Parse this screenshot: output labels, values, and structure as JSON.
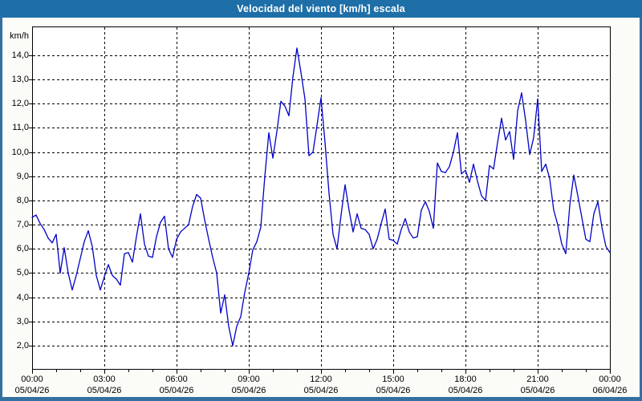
{
  "window": {
    "title": "Velocidad del viento [km/h] escala"
  },
  "colors": {
    "title_bar_bg": "#1E6FA8",
    "frame": "#34709F",
    "content_bg": "#FBFBF8",
    "plot_bg": "#FFFFFF",
    "grid": "#000000",
    "line": "#0000C8",
    "text": "#000000",
    "title_text": "#FFFFFF"
  },
  "chart_data": {
    "type": "line",
    "title": "Velocidad del viento [km/h] escala",
    "xlabel": "",
    "ylabel": "km/h",
    "grid": "dashed",
    "legend": "none",
    "xlim_hours": [
      0,
      24
    ],
    "ylim": [
      1.05,
      15.2
    ],
    "x_minor_tick_every_hours": 1,
    "x_major_tick_every_hours": 3,
    "y_ticks": [
      {
        "value": 14,
        "label": "14,0"
      },
      {
        "value": 13,
        "label": "13,0"
      },
      {
        "value": 12,
        "label": "12,0"
      },
      {
        "value": 11,
        "label": "11,0"
      },
      {
        "value": 10,
        "label": "10,0"
      },
      {
        "value": 9,
        "label": "9,0"
      },
      {
        "value": 8,
        "label": "8,0"
      },
      {
        "value": 7,
        "label": "7,0"
      },
      {
        "value": 6,
        "label": "6,0"
      },
      {
        "value": 5,
        "label": "5,0"
      },
      {
        "value": 4,
        "label": "4,0"
      },
      {
        "value": 3,
        "label": "3,0"
      },
      {
        "value": 2,
        "label": "2,0"
      }
    ],
    "x_ticks_major": [
      {
        "hour": 0,
        "label": "00:00",
        "date": "05/04/26"
      },
      {
        "hour": 3,
        "label": "03:00",
        "date": "05/04/26"
      },
      {
        "hour": 6,
        "label": "06:00",
        "date": "05/04/26"
      },
      {
        "hour": 9,
        "label": "09:00",
        "date": "05/04/26"
      },
      {
        "hour": 12,
        "label": "12:00",
        "date": "05/04/26"
      },
      {
        "hour": 15,
        "label": "15:00",
        "date": "05/04/26"
      },
      {
        "hour": 18,
        "label": "18:00",
        "date": "05/04/26"
      },
      {
        "hour": 21,
        "label": "21:00",
        "date": "05/04/26"
      },
      {
        "hour": 24,
        "label": "00:00",
        "date": "06/04/26"
      }
    ],
    "series": [
      {
        "name": "Velocidad del viento",
        "color": "#0000C8",
        "x_start_min": 0,
        "x_step_min": 10,
        "values": [
          7.3,
          7.4,
          7.05,
          6.8,
          6.45,
          6.25,
          6.6,
          5.0,
          6.05,
          5.0,
          4.3,
          4.9,
          5.6,
          6.3,
          6.75,
          6.1,
          4.9,
          4.3,
          4.85,
          5.35,
          4.9,
          4.75,
          4.5,
          5.8,
          5.85,
          5.45,
          6.5,
          7.45,
          6.2,
          5.7,
          5.65,
          6.5,
          7.1,
          7.35,
          6.0,
          5.65,
          6.4,
          6.7,
          6.85,
          7.0,
          7.75,
          8.25,
          8.1,
          7.2,
          6.4,
          5.65,
          5.0,
          3.35,
          4.1,
          2.8,
          2.0,
          2.8,
          3.2,
          4.2,
          5.0,
          5.95,
          6.3,
          6.9,
          9.0,
          10.8,
          9.75,
          10.85,
          12.1,
          11.9,
          11.5,
          13.1,
          14.3,
          13.3,
          12.2,
          9.85,
          10.0,
          11.1,
          12.25,
          10.4,
          8.3,
          6.6,
          6.0,
          7.4,
          8.65,
          7.6,
          6.7,
          7.45,
          6.85,
          6.8,
          6.6,
          6.0,
          6.4,
          7.05,
          7.65,
          6.4,
          6.35,
          6.2,
          6.8,
          7.25,
          6.7,
          6.45,
          6.5,
          7.6,
          7.95,
          7.55,
          6.85,
          9.55,
          9.2,
          9.15,
          9.4,
          10.0,
          10.8,
          9.1,
          9.25,
          8.75,
          9.5,
          8.8,
          8.2,
          8.0,
          9.45,
          9.3,
          10.4,
          11.4,
          10.5,
          10.85,
          9.7,
          11.7,
          12.45,
          11.3,
          9.9,
          10.6,
          12.2,
          9.2,
          9.5,
          8.9,
          7.6,
          7.0,
          6.2,
          5.8,
          7.8,
          9.05,
          8.2,
          7.3,
          6.4,
          6.3,
          7.45,
          7.95,
          6.9,
          6.1,
          5.85
        ]
      }
    ]
  }
}
